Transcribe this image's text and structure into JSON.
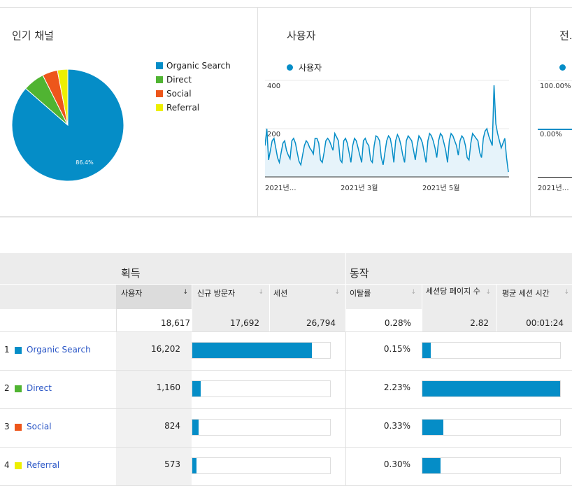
{
  "colors": {
    "blue": "#058dc7",
    "green": "#50b432",
    "orange": "#ed561b",
    "yellow": "#edef00",
    "link": "#2a56c6"
  },
  "panels": {
    "channels": {
      "title": "인기 채널",
      "pie_label": "86.4%",
      "legend": [
        {
          "label": "Organic Search",
          "color": "#058dc7"
        },
        {
          "label": "Direct",
          "color": "#50b432"
        },
        {
          "label": "Social",
          "color": "#ed561b"
        },
        {
          "label": "Referral",
          "color": "#edef00"
        }
      ]
    },
    "users": {
      "title": "사용자",
      "legend": "사용자",
      "y_ticks": [
        "400",
        "200"
      ],
      "x_labels": [
        "2021년…",
        "2021년 3월",
        "2021년 5월"
      ]
    },
    "third": {
      "title": "전…",
      "y_ticks": [
        "100.00%",
        "0.00%"
      ],
      "x_label": "2021년…"
    }
  },
  "chart_data": [
    {
      "type": "pie",
      "categories": [
        "Organic Search",
        "Direct",
        "Social",
        "Referral"
      ],
      "values": [
        86.4,
        6.2,
        4.4,
        3.0
      ]
    },
    {
      "type": "area",
      "series": [
        {
          "name": "사용자",
          "values": [
            130,
            200,
            70,
            110,
            150,
            160,
            120,
            80,
            60,
            100,
            140,
            150,
            110,
            90,
            75,
            150,
            160,
            140,
            100,
            65,
            50,
            90,
            130,
            150,
            140,
            120,
            110,
            95,
            160,
            160,
            140,
            70,
            60,
            100,
            150,
            160,
            150,
            130,
            110,
            180,
            165,
            150,
            70,
            60,
            150,
            160,
            140,
            100,
            60,
            130,
            160,
            150,
            120,
            90,
            60,
            150,
            160,
            140,
            130,
            70,
            60,
            130,
            170,
            165,
            150,
            80,
            50,
            100,
            150,
            170,
            160,
            120,
            60,
            150,
            175,
            160,
            130,
            90,
            60,
            150,
            170,
            160,
            150,
            110,
            70,
            130,
            170,
            160,
            140,
            100,
            60,
            150,
            180,
            170,
            150,
            120,
            80,
            150,
            180,
            170,
            140,
            110,
            60,
            150,
            180,
            170,
            150,
            130,
            90,
            150,
            170,
            160,
            130,
            80,
            70,
            140,
            180,
            170,
            160,
            150,
            100,
            80,
            160,
            190,
            200,
            170,
            150,
            130,
            380,
            220,
            180,
            150,
            120,
            140,
            160,
            80,
            20
          ]
        }
      ],
      "ylim": [
        0,
        400
      ],
      "y_ticks": [
        200,
        400
      ],
      "x_labels": [
        "2021년…",
        "2021년 3월",
        "2021년 5월"
      ]
    }
  ],
  "table": {
    "group_headers": {
      "acquisition": "획득",
      "behavior": "동작"
    },
    "columns": [
      {
        "label": "사용자",
        "arrow": "↓"
      },
      {
        "label": "신규 방문자",
        "arrow": "↓"
      },
      {
        "label": "세션",
        "arrow": "↓"
      },
      {
        "label": "이탈률",
        "arrow": "↓"
      },
      {
        "label": "세션당 페이지 수",
        "arrow": "↓"
      },
      {
        "label": "평균 세션 시간",
        "arrow": "↓"
      }
    ],
    "totals": [
      "18,617",
      "17,692",
      "26,794",
      "0.28%",
      "2.82",
      "00:01:24"
    ],
    "rows": [
      {
        "num": "1",
        "name": "Organic Search",
        "color": "#058dc7",
        "users": "16,202",
        "users_share": 0.87,
        "bounce": "0.15%",
        "pages_share": 0.06
      },
      {
        "num": "2",
        "name": "Direct",
        "color": "#50b432",
        "users": "1,160",
        "users_share": 0.06,
        "bounce": "2.23%",
        "pages_share": 1.0
      },
      {
        "num": "3",
        "name": "Social",
        "color": "#ed561b",
        "users": "824",
        "users_share": 0.045,
        "bounce": "0.33%",
        "pages_share": 0.15
      },
      {
        "num": "4",
        "name": "Referral",
        "color": "#edef00",
        "users": "573",
        "users_share": 0.03,
        "bounce": "0.30%",
        "pages_share": 0.13
      }
    ]
  }
}
